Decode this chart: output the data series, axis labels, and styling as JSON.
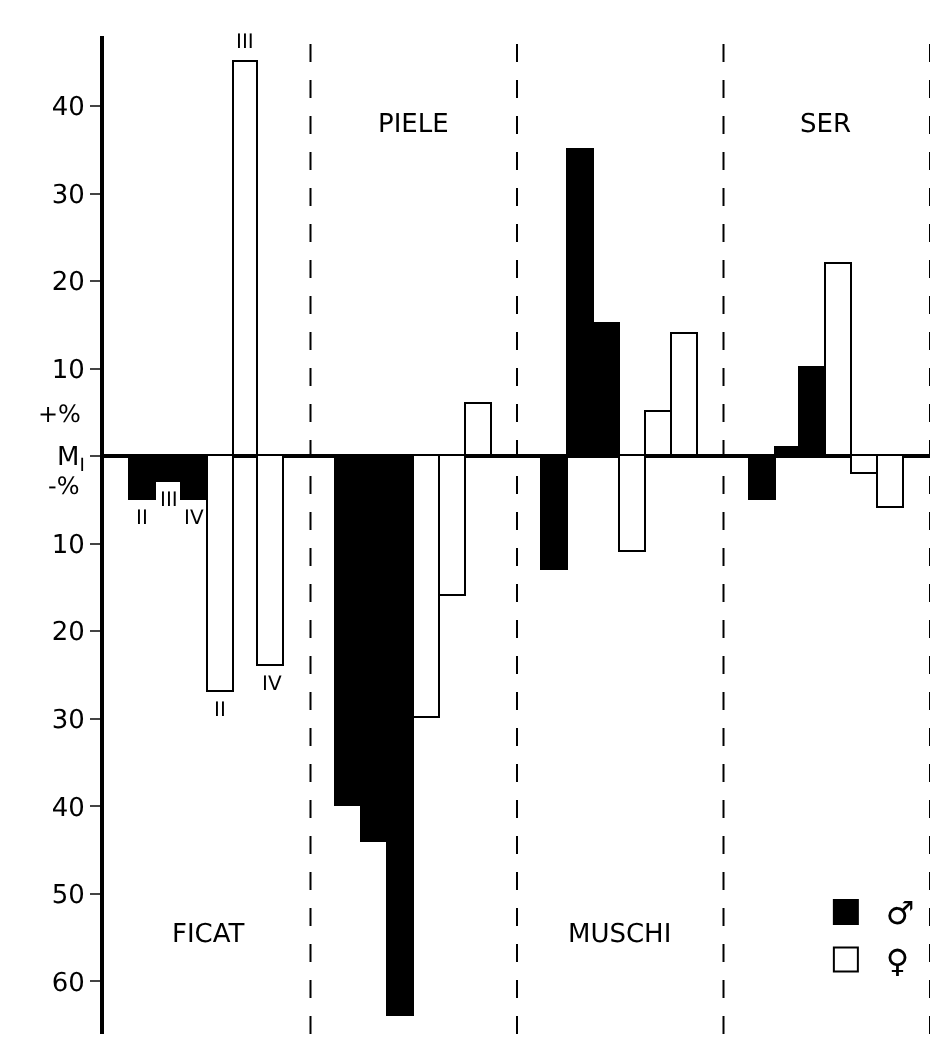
{
  "chart_data": {
    "type": "bar",
    "categories": [
      null,
      "II",
      "III",
      "IV",
      "II",
      "III",
      "IV",
      null,
      null,
      null,
      null,
      null,
      null,
      null,
      null,
      null,
      null,
      null,
      null,
      null,
      null,
      null,
      null,
      null,
      null,
      null,
      null,
      null,
      null,
      null,
      null,
      null
    ],
    "ylim": [
      -66,
      48
    ],
    "yticks": [
      40,
      30,
      20,
      10,
      {
        "value": 0,
        "label": "M$_{I}$"
      },
      {
        "value": -10,
        "label": "10"
      },
      {
        "value": -20,
        "label": "20"
      },
      {
        "value": -30,
        "label": "30"
      },
      {
        "value": -40,
        "label": "40"
      },
      {
        "value": -50,
        "label": "50"
      },
      {
        "value": -60,
        "label": "60"
      }
    ],
    "annotations": [
      "+%",
      "-%",
      "FICAT",
      "PIELE",
      "MUSCHI",
      "SER"
    ],
    "legend": "bottom right",
    "series": [
      {
        "name": "♂",
        "color": "#000000",
        "values": [
          null,
          -5,
          -3,
          -5,
          null,
          null,
          null,
          null,
          null,
          -40,
          -44,
          -64,
          null,
          null,
          null,
          null,
          null,
          -13,
          35,
          15,
          null,
          null,
          null,
          null,
          null,
          -5,
          1,
          10,
          null,
          null,
          null,
          null
        ]
      },
      {
        "name": "♀",
        "color": "#ffffff",
        "values": [
          null,
          null,
          null,
          null,
          -27,
          45,
          -24,
          null,
          null,
          null,
          null,
          null,
          -30,
          -16,
          6,
          null,
          null,
          null,
          null,
          null,
          -11,
          5,
          14,
          null,
          null,
          null,
          null,
          null,
          22,
          -2,
          -6,
          null
        ]
      }
    ]
  }
}
